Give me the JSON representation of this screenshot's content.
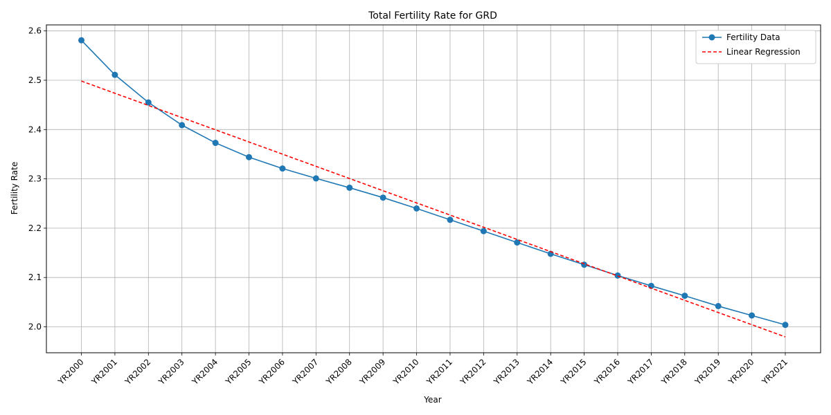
{
  "chart_data": {
    "type": "line",
    "title": "Total Fertility Rate for GRD",
    "xlabel": "Year",
    "ylabel": "Fertility Rate",
    "categories": [
      "YR2000",
      "YR2001",
      "YR2002",
      "YR2003",
      "YR2004",
      "YR2005",
      "YR2006",
      "YR2007",
      "YR2008",
      "YR2009",
      "YR2010",
      "YR2011",
      "YR2012",
      "YR2013",
      "YR2014",
      "YR2015",
      "YR2016",
      "YR2017",
      "YR2018",
      "YR2019",
      "YR2020",
      "YR2021"
    ],
    "ylim": [
      1.95,
      2.61
    ],
    "yticks": [
      "2.0",
      "2.1",
      "2.2",
      "2.3",
      "2.4",
      "2.5",
      "2.6"
    ],
    "grid": true,
    "legend_position": "top-right",
    "series": [
      {
        "name": "Fertility Data",
        "style": "solid-with-markers",
        "color": "#1f77b4",
        "values": [
          2.581,
          2.511,
          2.455,
          2.409,
          2.373,
          2.344,
          2.321,
          2.301,
          2.282,
          2.262,
          2.24,
          2.217,
          2.194,
          2.171,
          2.148,
          2.126,
          2.104,
          2.083,
          2.063,
          2.042,
          2.023,
          2.004
        ]
      },
      {
        "name": "Linear Regression",
        "style": "dashed",
        "color": "#ff0000",
        "values": [
          2.4983,
          2.4736,
          2.4489,
          2.4242,
          2.3995,
          2.3748,
          2.3501,
          2.3254,
          2.3007,
          2.276,
          2.2513,
          2.2266,
          2.2019,
          2.1772,
          2.1525,
          2.1278,
          2.1031,
          2.0784,
          2.0537,
          2.029,
          2.0043,
          1.9796
        ]
      }
    ]
  }
}
